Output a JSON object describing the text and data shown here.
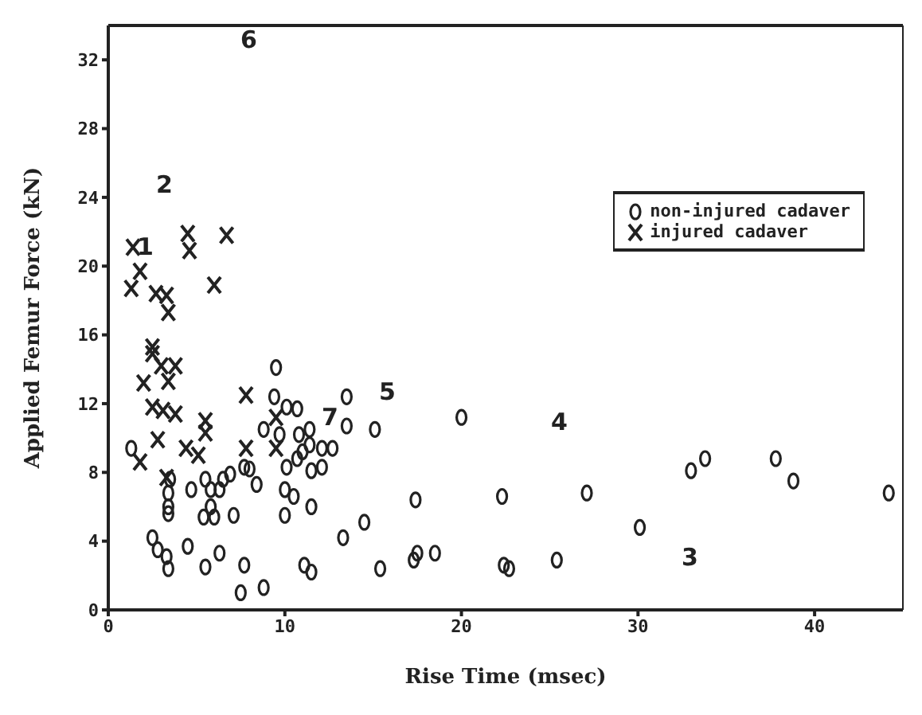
{
  "chart_data": {
    "type": "scatter",
    "xlabel": "Rise Time (msec)",
    "ylabel": "Applied Femur Force (kN)",
    "xlim": [
      0,
      45
    ],
    "ylim": [
      0,
      34
    ],
    "xticks": [
      0,
      10,
      20,
      30,
      40
    ],
    "yticks": [
      0,
      4,
      8,
      12,
      16,
      20,
      24,
      28,
      32
    ],
    "grid": false,
    "legend": "top right",
    "series": [
      {
        "name": "non-injured cadaver",
        "color": "#222222",
        "marker": "circle",
        "x": [
          1.3,
          9.5,
          9.4,
          10.1,
          10.7,
          13.5,
          13.5,
          15.1,
          8.8,
          9.7,
          11.4,
          10.8,
          11.4,
          12.1,
          12.7,
          11.0,
          10.7,
          10.1,
          11.5,
          12.1,
          10.0,
          10.5,
          11.5,
          10.0,
          7.7,
          8.0,
          8.4,
          6.9,
          6.5,
          6.3,
          5.8,
          5.5,
          4.7,
          3.5,
          3.4,
          3.4,
          3.4,
          5.4,
          6.0,
          7.1,
          5.8,
          4.5,
          2.8,
          3.3,
          3.4,
          5.5,
          6.3,
          7.7,
          7.5,
          8.8,
          11.1,
          11.5,
          13.3,
          14.5,
          2.5,
          20.0,
          15.4,
          17.4,
          17.3,
          17.5,
          18.5,
          22.3,
          22.4,
          22.7,
          25.4,
          27.1,
          30.1,
          33.0,
          33.8,
          37.8,
          38.8,
          44.2
        ],
        "values": [
          9.4,
          14.1,
          12.4,
          11.8,
          11.7,
          12.4,
          10.7,
          10.5,
          10.5,
          10.2,
          10.5,
          10.2,
          9.6,
          9.4,
          9.4,
          9.2,
          8.8,
          8.3,
          8.1,
          8.3,
          7.0,
          6.6,
          6.0,
          5.5,
          8.3,
          8.2,
          7.3,
          7.9,
          7.6,
          7.0,
          7.0,
          7.6,
          7.0,
          7.6,
          6.8,
          6.0,
          5.6,
          5.4,
          5.4,
          5.5,
          6.0,
          3.7,
          3.5,
          3.1,
          2.4,
          2.5,
          3.3,
          2.6,
          1.0,
          1.3,
          2.6,
          2.2,
          4.2,
          5.1,
          4.2,
          11.2,
          2.4,
          6.4,
          2.9,
          3.3,
          3.3,
          6.6,
          2.6,
          2.4,
          2.9,
          6.8,
          4.8,
          8.1,
          8.8,
          8.8,
          7.5,
          6.8
        ]
      },
      {
        "name": "injured cadaver",
        "color": "#222222",
        "marker": "cross",
        "x": [
          1.4,
          1.8,
          1.3,
          2.7,
          3.3,
          3.4,
          4.5,
          4.6,
          6.7,
          6.0,
          2.5,
          2.5,
          3.0,
          3.8,
          3.4,
          2.0,
          7.8,
          2.5,
          3.1,
          3.8,
          2.8,
          1.8,
          4.4,
          5.1,
          5.5,
          5.5,
          3.3,
          7.8,
          9.5,
          9.5
        ],
        "values": [
          21.1,
          19.7,
          18.7,
          18.4,
          18.3,
          17.3,
          21.9,
          20.9,
          21.8,
          18.9,
          15.3,
          14.9,
          14.2,
          14.2,
          13.3,
          13.2,
          12.5,
          11.8,
          11.6,
          11.4,
          9.9,
          8.6,
          9.4,
          9.0,
          11.0,
          10.3,
          7.7,
          9.4,
          9.4,
          11.2
        ]
      }
    ],
    "annotations": [
      "1",
      "2",
      "3",
      "4",
      "5",
      "6",
      "7"
    ]
  }
}
